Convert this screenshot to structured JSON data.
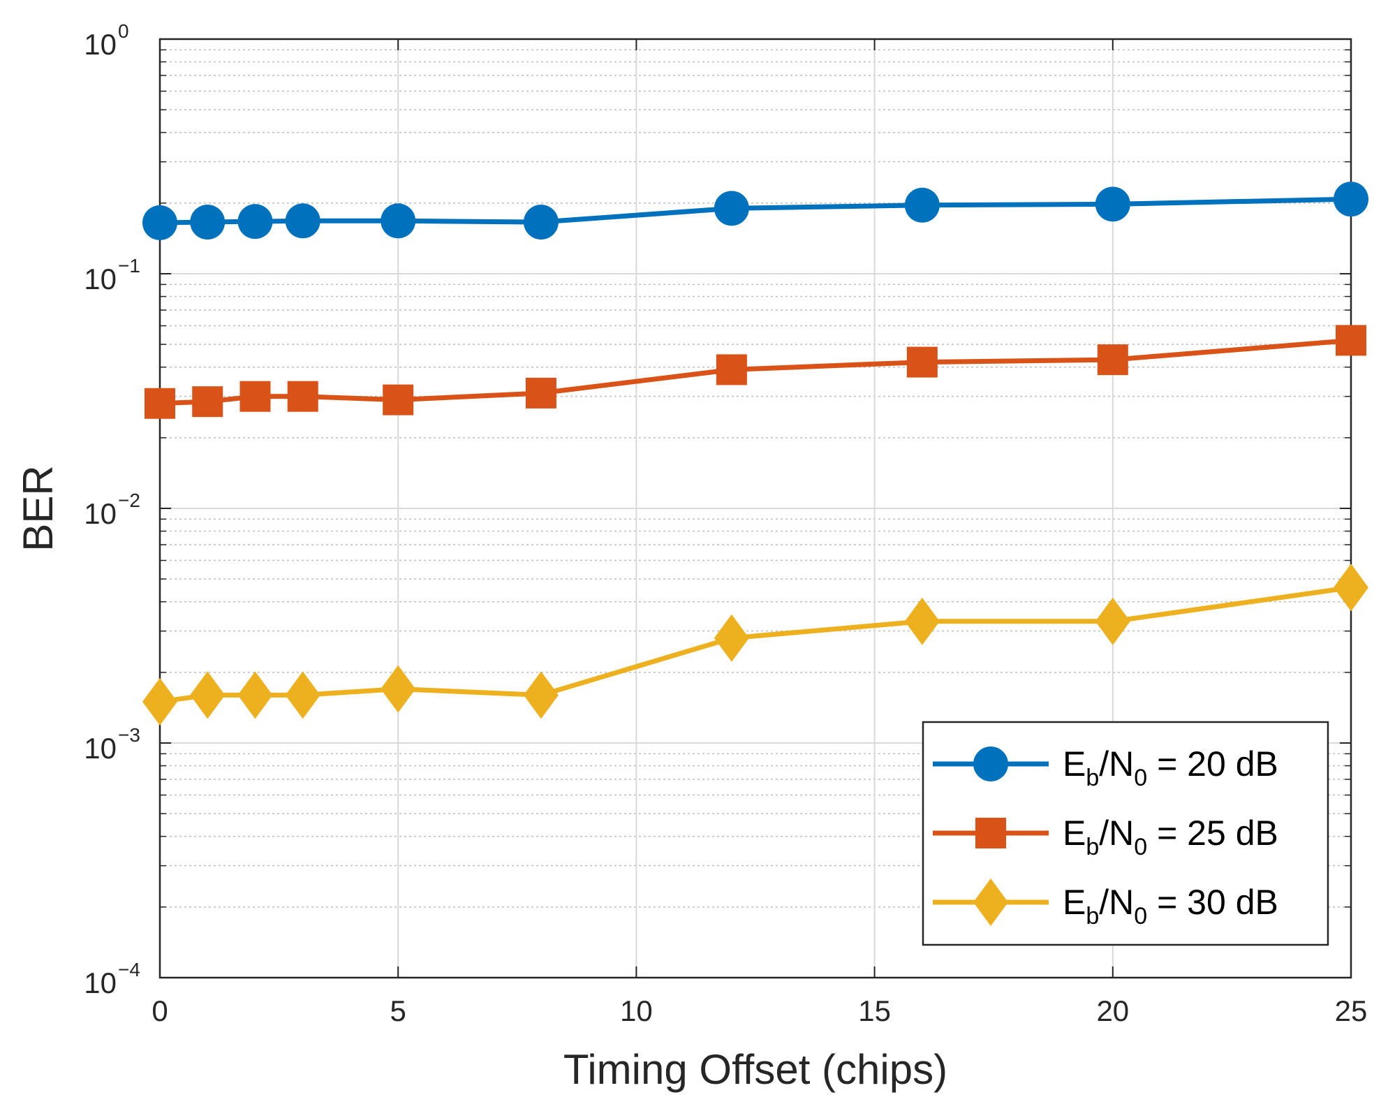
{
  "chart_data": {
    "type": "line",
    "xlabel": "Timing Offset (chips)",
    "ylabel": "BER",
    "xlim": [
      0,
      25
    ],
    "ylim": [
      0.0001,
      1
    ],
    "yscale": "log",
    "grid": true,
    "minor_grid": true,
    "legend_position": "bottom-right",
    "x_ticks": [
      "0",
      "5",
      "10",
      "15",
      "20",
      "25"
    ],
    "y_ticks": [
      {
        "base": "10",
        "exp": "0"
      },
      {
        "base": "10",
        "exp": "−1"
      },
      {
        "base": "10",
        "exp": "−2"
      },
      {
        "base": "10",
        "exp": "−3"
      },
      {
        "base": "10",
        "exp": "−4"
      }
    ],
    "x": [
      0,
      1,
      2,
      3,
      5,
      8,
      12,
      16,
      20,
      25
    ],
    "series": [
      {
        "name": "Eb/N0 = 20 dB",
        "legend_parts": {
          "main": "E",
          "sub1": "b",
          "mid": "/N",
          "sub2": "0",
          "rest": " = 20 dB"
        },
        "color": "#0072BD",
        "marker": "circle",
        "values": [
          0.165,
          0.166,
          0.167,
          0.168,
          0.168,
          0.166,
          0.19,
          0.196,
          0.198,
          0.208
        ]
      },
      {
        "name": "Eb/N0 = 25 dB",
        "legend_parts": {
          "main": "E",
          "sub1": "b",
          "mid": "/N",
          "sub2": "0",
          "rest": " = 25 dB"
        },
        "color": "#D95319",
        "marker": "square",
        "values": [
          0.028,
          0.0285,
          0.03,
          0.03,
          0.029,
          0.031,
          0.039,
          0.042,
          0.043,
          0.052
        ]
      },
      {
        "name": "Eb/N0 = 30 dB",
        "legend_parts": {
          "main": "E",
          "sub1": "b",
          "mid": "/N",
          "sub2": "0",
          "rest": " = 30 dB"
        },
        "color": "#EDB120",
        "marker": "diamond",
        "values": [
          0.0015,
          0.0016,
          0.0016,
          0.0016,
          0.0017,
          0.0016,
          0.0028,
          0.0033,
          0.0033,
          0.0046
        ]
      }
    ]
  }
}
